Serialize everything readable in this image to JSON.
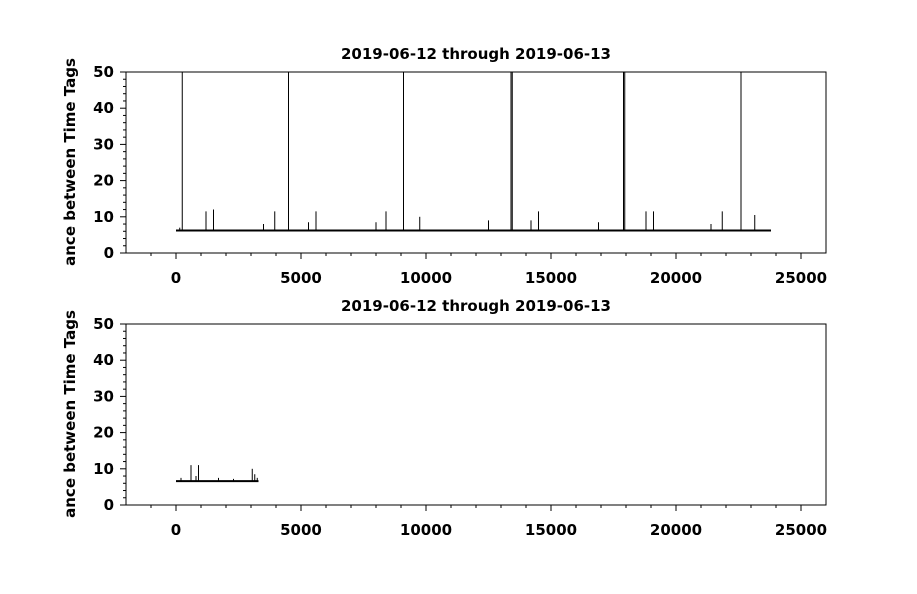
{
  "chart_data": [
    {
      "type": "line",
      "title": "2019-06-12 through 2019-06-13",
      "ylabel": "ance between Time Tags",
      "xlabel": "",
      "xlim": [
        -2000,
        26000
      ],
      "ylim": [
        0,
        50
      ],
      "xticks": [
        0,
        5000,
        10000,
        15000,
        20000,
        25000
      ],
      "yticks": [
        0,
        10,
        20,
        30,
        40,
        50
      ],
      "baseline": {
        "x_start": 0,
        "x_end": 23800,
        "y": 6.2
      },
      "spikes": [
        {
          "x": 150,
          "y": 7
        },
        {
          "x": 250,
          "y": 50
        },
        {
          "x": 1200,
          "y": 11.5
        },
        {
          "x": 1500,
          "y": 12
        },
        {
          "x": 3500,
          "y": 8
        },
        {
          "x": 3950,
          "y": 11.5
        },
        {
          "x": 4500,
          "y": 50
        },
        {
          "x": 5300,
          "y": 8.5
        },
        {
          "x": 5600,
          "y": 11.5
        },
        {
          "x": 8000,
          "y": 8.5
        },
        {
          "x": 8400,
          "y": 11.5
        },
        {
          "x": 9100,
          "y": 50
        },
        {
          "x": 9750,
          "y": 10
        },
        {
          "x": 12500,
          "y": 9
        },
        {
          "x": 13400,
          "y": 50
        },
        {
          "x": 13450,
          "y": 50
        },
        {
          "x": 14200,
          "y": 9
        },
        {
          "x": 14500,
          "y": 11.5
        },
        {
          "x": 16900,
          "y": 8.5
        },
        {
          "x": 17900,
          "y": 50
        },
        {
          "x": 17950,
          "y": 50
        },
        {
          "x": 18800,
          "y": 11.5
        },
        {
          "x": 19100,
          "y": 11.5
        },
        {
          "x": 21400,
          "y": 8
        },
        {
          "x": 21850,
          "y": 11.5
        },
        {
          "x": 22600,
          "y": 50
        },
        {
          "x": 23150,
          "y": 10.5
        }
      ]
    },
    {
      "type": "line",
      "title": "2019-06-12 through 2019-06-13",
      "ylabel": "ance between Time Tags",
      "xlabel": "",
      "xlim": [
        -2000,
        26000
      ],
      "ylim": [
        0,
        50
      ],
      "xticks": [
        0,
        5000,
        10000,
        15000,
        20000,
        25000
      ],
      "yticks": [
        0,
        10,
        20,
        30,
        40,
        50
      ],
      "baseline": {
        "x_start": 0,
        "x_end": 3300,
        "y": 6.6
      },
      "spikes": [
        {
          "x": 200,
          "y": 7.5
        },
        {
          "x": 600,
          "y": 11
        },
        {
          "x": 800,
          "y": 8
        },
        {
          "x": 900,
          "y": 11
        },
        {
          "x": 1700,
          "y": 7.5
        },
        {
          "x": 2300,
          "y": 7.2
        },
        {
          "x": 3050,
          "y": 10
        },
        {
          "x": 3150,
          "y": 8.5
        },
        {
          "x": 3250,
          "y": 7.5
        }
      ]
    }
  ]
}
